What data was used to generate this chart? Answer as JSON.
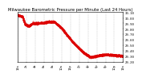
{
  "title": "Milwaukee Barometric Pressure per Minute (Last 24 Hours)",
  "y_min": 29.2,
  "y_max": 30.1,
  "y_ticks": [
    29.2,
    29.3,
    29.4,
    29.5,
    29.6,
    29.7,
    29.8,
    29.9,
    30.0,
    30.1
  ],
  "line_color": "#dd0000",
  "bg_color": "#ffffff",
  "plot_bg_color": "#ffffff",
  "grid_color": "#bbbbbb",
  "title_fontsize": 3.8,
  "tick_fontsize": 2.8,
  "n_points": 1440,
  "pressure_segments": [
    [
      0,
      30.05
    ],
    [
      60,
      30.03
    ],
    [
      100,
      29.88
    ],
    [
      150,
      29.85
    ],
    [
      200,
      29.9
    ],
    [
      350,
      29.91
    ],
    [
      420,
      29.93
    ],
    [
      500,
      29.93
    ],
    [
      600,
      29.81
    ],
    [
      750,
      29.56
    ],
    [
      900,
      29.36
    ],
    [
      1000,
      29.28
    ],
    [
      1100,
      29.31
    ],
    [
      1200,
      29.33
    ],
    [
      1320,
      29.32
    ],
    [
      1440,
      29.3
    ]
  ],
  "x_tick_minutes": [
    0,
    120,
    240,
    360,
    480,
    600,
    720,
    840,
    960,
    1080,
    1200,
    1320,
    1440
  ],
  "x_tick_labels": [
    "12a",
    "2a",
    "4a",
    "6a",
    "8a",
    "10a",
    "12p",
    "2p",
    "4p",
    "6p",
    "8p",
    "10p",
    "12a"
  ]
}
